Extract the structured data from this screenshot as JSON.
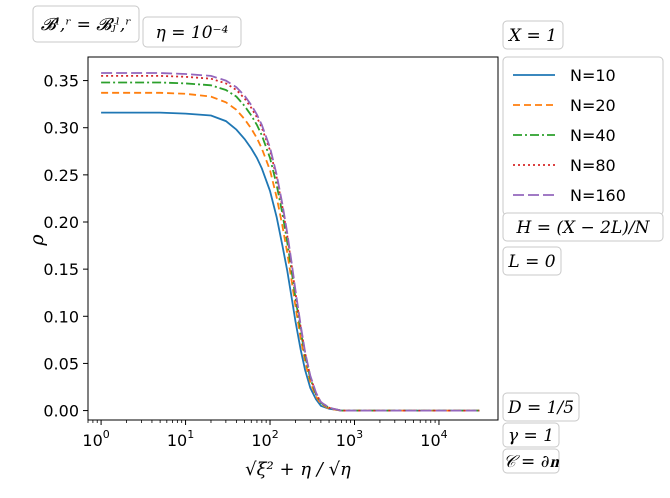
{
  "chart_data": {
    "type": "line",
    "xlabel": "√ξ² + η / √η",
    "ylabel": "ρ",
    "x_scale": "log",
    "xlim": [
      0.7,
      50000
    ],
    "ylim": [
      -0.01,
      0.375
    ],
    "x_ticks": [
      {
        "value": 1,
        "base": "10",
        "exp": "0"
      },
      {
        "value": 10,
        "base": "10",
        "exp": "1"
      },
      {
        "value": 100,
        "base": "10",
        "exp": "2"
      },
      {
        "value": 1000,
        "base": "10",
        "exp": "3"
      },
      {
        "value": 10000,
        "base": "10",
        "exp": "4"
      }
    ],
    "y_ticks": [
      "0.00",
      "0.05",
      "0.10",
      "0.15",
      "0.20",
      "0.25",
      "0.30",
      "0.35"
    ],
    "legend_position": "right",
    "grid": false,
    "series": [
      {
        "name": "N=10",
        "color": "#1f77b4",
        "dash": "solid",
        "points": [
          [
            1,
            0.316
          ],
          [
            5,
            0.316
          ],
          [
            10,
            0.315
          ],
          [
            20,
            0.313
          ],
          [
            30,
            0.307
          ],
          [
            40,
            0.298
          ],
          [
            50,
            0.288
          ],
          [
            60,
            0.278
          ],
          [
            70,
            0.268
          ],
          [
            80,
            0.257
          ],
          [
            100,
            0.233
          ],
          [
            120,
            0.205
          ],
          [
            140,
            0.175
          ],
          [
            160,
            0.148
          ],
          [
            180,
            0.12
          ],
          [
            200,
            0.095
          ],
          [
            230,
            0.065
          ],
          [
            260,
            0.043
          ],
          [
            300,
            0.024
          ],
          [
            350,
            0.012
          ],
          [
            400,
            0.005
          ],
          [
            500,
            0.002
          ],
          [
            700,
            0.0
          ],
          [
            1000,
            0.0
          ],
          [
            30000,
            0.0
          ]
        ]
      },
      {
        "name": "N=20",
        "color": "#ff7f0e",
        "dash": "dashed",
        "points": [
          [
            1,
            0.337
          ],
          [
            5,
            0.337
          ],
          [
            10,
            0.336
          ],
          [
            20,
            0.333
          ],
          [
            30,
            0.327
          ],
          [
            40,
            0.319
          ],
          [
            50,
            0.309
          ],
          [
            60,
            0.299
          ],
          [
            70,
            0.289
          ],
          [
            80,
            0.278
          ],
          [
            100,
            0.255
          ],
          [
            120,
            0.226
          ],
          [
            140,
            0.196
          ],
          [
            160,
            0.167
          ],
          [
            180,
            0.138
          ],
          [
            200,
            0.111
          ],
          [
            230,
            0.077
          ],
          [
            260,
            0.052
          ],
          [
            300,
            0.03
          ],
          [
            350,
            0.015
          ],
          [
            400,
            0.007
          ],
          [
            500,
            0.002
          ],
          [
            700,
            0.0
          ],
          [
            1000,
            0.0
          ],
          [
            30000,
            0.0
          ]
        ]
      },
      {
        "name": "N=40",
        "color": "#2ca02c",
        "dash": "dashdot",
        "points": [
          [
            1,
            0.348
          ],
          [
            5,
            0.348
          ],
          [
            10,
            0.347
          ],
          [
            20,
            0.345
          ],
          [
            30,
            0.34
          ],
          [
            40,
            0.333
          ],
          [
            50,
            0.323
          ],
          [
            60,
            0.313
          ],
          [
            70,
            0.303
          ],
          [
            80,
            0.292
          ],
          [
            100,
            0.268
          ],
          [
            120,
            0.239
          ],
          [
            140,
            0.209
          ],
          [
            160,
            0.178
          ],
          [
            180,
            0.148
          ],
          [
            200,
            0.12
          ],
          [
            230,
            0.085
          ],
          [
            260,
            0.058
          ],
          [
            300,
            0.034
          ],
          [
            350,
            0.017
          ],
          [
            400,
            0.008
          ],
          [
            500,
            0.003
          ],
          [
            700,
            0.0
          ],
          [
            1000,
            0.0
          ],
          [
            30000,
            0.0
          ]
        ]
      },
      {
        "name": "N=80",
        "color": "#d62728",
        "dash": "dotted",
        "points": [
          [
            1,
            0.355
          ],
          [
            5,
            0.355
          ],
          [
            10,
            0.354
          ],
          [
            20,
            0.352
          ],
          [
            30,
            0.347
          ],
          [
            40,
            0.34
          ],
          [
            50,
            0.331
          ],
          [
            60,
            0.321
          ],
          [
            70,
            0.311
          ],
          [
            80,
            0.3
          ],
          [
            100,
            0.276
          ],
          [
            120,
            0.247
          ],
          [
            140,
            0.216
          ],
          [
            160,
            0.185
          ],
          [
            180,
            0.154
          ],
          [
            200,
            0.125
          ],
          [
            230,
            0.089
          ],
          [
            260,
            0.061
          ],
          [
            300,
            0.036
          ],
          [
            350,
            0.018
          ],
          [
            400,
            0.009
          ],
          [
            500,
            0.003
          ],
          [
            700,
            0.0
          ],
          [
            1000,
            0.0
          ],
          [
            30000,
            0.0
          ]
        ]
      },
      {
        "name": "N=160",
        "color": "#9467bd",
        "dash": "longdash",
        "points": [
          [
            1,
            0.358
          ],
          [
            5,
            0.358
          ],
          [
            10,
            0.357
          ],
          [
            20,
            0.355
          ],
          [
            30,
            0.35
          ],
          [
            40,
            0.343
          ],
          [
            50,
            0.334
          ],
          [
            60,
            0.324
          ],
          [
            70,
            0.314
          ],
          [
            80,
            0.303
          ],
          [
            100,
            0.279
          ],
          [
            120,
            0.25
          ],
          [
            140,
            0.219
          ],
          [
            160,
            0.188
          ],
          [
            180,
            0.157
          ],
          [
            200,
            0.128
          ],
          [
            230,
            0.091
          ],
          [
            260,
            0.062
          ],
          [
            300,
            0.037
          ],
          [
            350,
            0.019
          ],
          [
            400,
            0.009
          ],
          [
            500,
            0.003
          ],
          [
            700,
            0.0
          ],
          [
            1000,
            0.0
          ],
          [
            30000,
            0.0
          ]
        ]
      }
    ],
    "annotations": {
      "boundary": "𝓑ˡ,ʳ = 𝓑ⱼˡ,ʳ",
      "eta": "η = 10⁻⁴",
      "X": "X = 1",
      "H": "H = (X − 2L)/N",
      "L": "L = 0",
      "D": "D = 1/5",
      "gamma": "γ = 1",
      "C": "𝒞 = ∂𝐧"
    }
  }
}
